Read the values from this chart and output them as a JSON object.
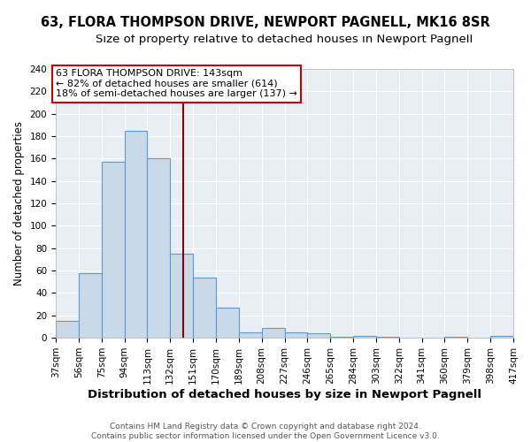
{
  "title": "63, FLORA THOMPSON DRIVE, NEWPORT PAGNELL, MK16 8SR",
  "subtitle": "Size of property relative to detached houses in Newport Pagnell",
  "xlabel": "Distribution of detached houses by size in Newport Pagnell",
  "ylabel": "Number of detached properties",
  "bin_edges": [
    37,
    56,
    75,
    94,
    113,
    132,
    151,
    170,
    189,
    208,
    227,
    246,
    265,
    284,
    303,
    322,
    341,
    360,
    379,
    398,
    417
  ],
  "bar_heights": [
    15,
    58,
    157,
    185,
    160,
    75,
    54,
    27,
    5,
    9,
    5,
    4,
    1,
    2,
    1,
    0,
    0,
    1,
    0,
    2
  ],
  "bar_facecolor": "#c9d9e8",
  "bar_edgecolor": "#5b9bd5",
  "vline_x": 143,
  "vline_color": "#8b0000",
  "ylim": [
    0,
    240
  ],
  "yticks": [
    0,
    20,
    40,
    60,
    80,
    100,
    120,
    140,
    160,
    180,
    200,
    220,
    240
  ],
  "xtick_labels": [
    "37sqm",
    "56sqm",
    "75sqm",
    "94sqm",
    "113sqm",
    "132sqm",
    "151sqm",
    "170sqm",
    "189sqm",
    "208sqm",
    "227sqm",
    "246sqm",
    "265sqm",
    "284sqm",
    "303sqm",
    "322sqm",
    "341sqm",
    "360sqm",
    "379sqm",
    "398sqm",
    "417sqm"
  ],
  "annotation_title": "63 FLORA THOMPSON DRIVE: 143sqm",
  "annotation_line1": "← 82% of detached houses are smaller (614)",
  "annotation_line2": "18% of semi-detached houses are larger (137) →",
  "annotation_box_color": "#ffffff",
  "annotation_box_edgecolor": "#cc0000",
  "footer_line1": "Contains HM Land Registry data © Crown copyright and database right 2024.",
  "footer_line2": "Contains public sector information licensed under the Open Government Licence v3.0.",
  "background_color": "#ffffff",
  "plot_bg_color": "#e8eef4",
  "grid_color": "#ffffff",
  "title_fontsize": 10.5,
  "subtitle_fontsize": 9.5,
  "tick_fontsize": 7.5,
  "ylabel_fontsize": 8.5,
  "xlabel_fontsize": 9.5,
  "annotation_fontsize": 8,
  "footer_fontsize": 6.5
}
